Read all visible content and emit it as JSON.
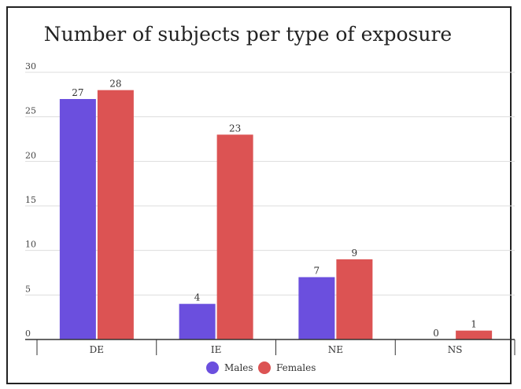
{
  "chart_data": {
    "type": "bar",
    "title": "Number of subjects per type of exposure",
    "xlabel": "",
    "ylabel": "",
    "categories": [
      "DE",
      "IE",
      "NE",
      "NS"
    ],
    "series": [
      {
        "name": "Males",
        "values": [
          27,
          4,
          7,
          0
        ],
        "color": "#6b4fde"
      },
      {
        "name": "Females",
        "values": [
          28,
          23,
          9,
          1
        ],
        "color": "#dc5353"
      }
    ],
    "ylim": [
      0,
      30
    ],
    "yticks": [
      0,
      5,
      10,
      15,
      20,
      25,
      30
    ],
    "grid": true,
    "legend": "bottom",
    "data_labels": true
  }
}
